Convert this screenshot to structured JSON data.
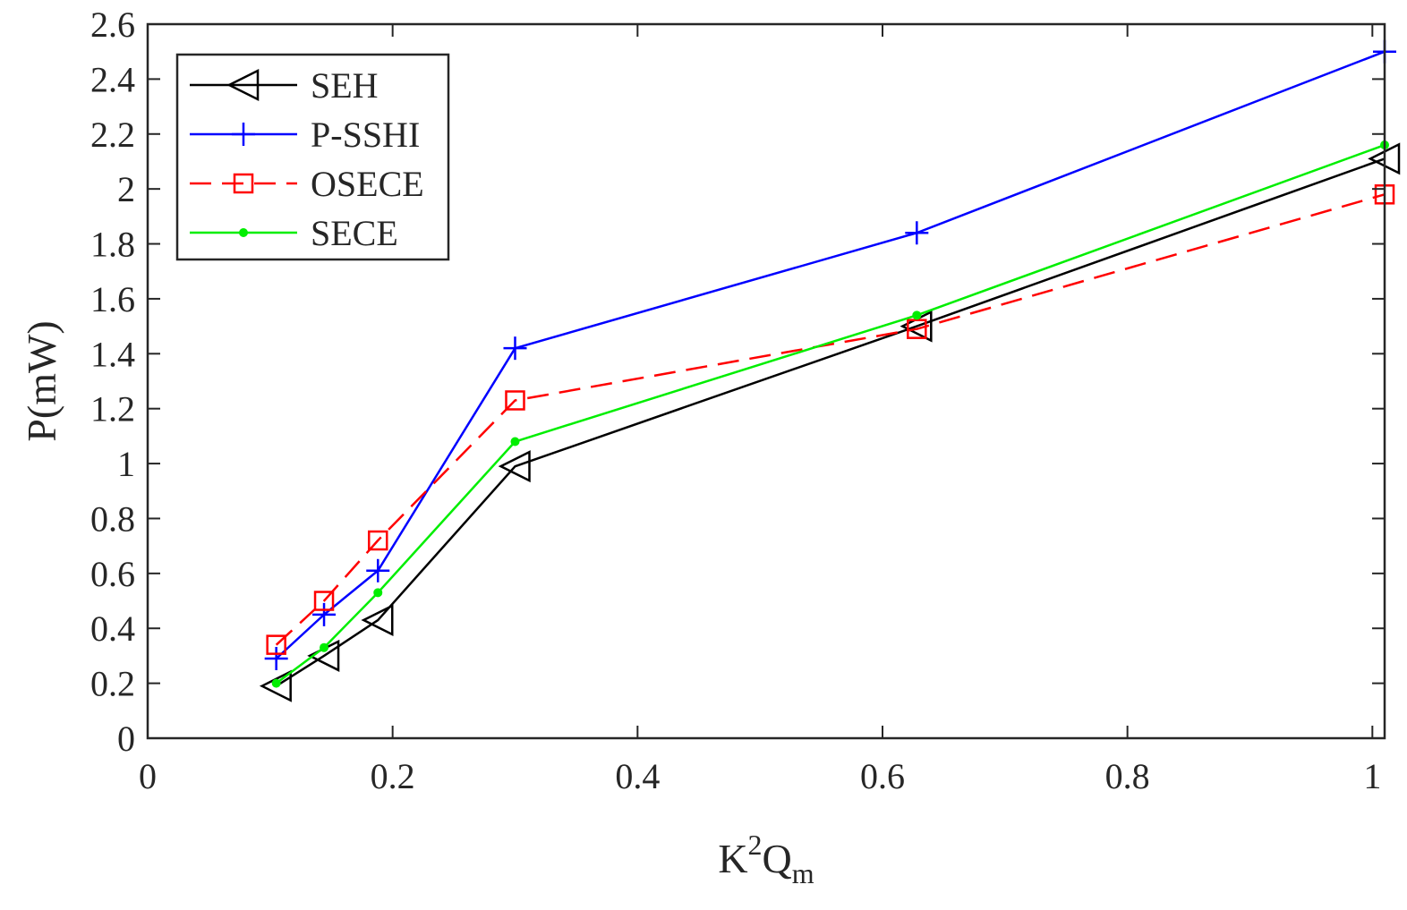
{
  "chart_data": {
    "type": "line",
    "title": "",
    "xlabel": {
      "base": "K",
      "sup": "2",
      "main": "Q",
      "sub": "m"
    },
    "ylabel": "P(mW)",
    "xlim": [
      0,
      1.01
    ],
    "ylim": [
      0,
      2.6
    ],
    "xticks": [
      0,
      0.2,
      0.4,
      0.6,
      0.8,
      1
    ],
    "xtick_labels": [
      "0",
      "0.2",
      "0.4",
      "0.6",
      "0.8",
      "1"
    ],
    "yticks": [
      0,
      0.2,
      0.4,
      0.6,
      0.8,
      1,
      1.2,
      1.4,
      1.6,
      1.8,
      2,
      2.2,
      2.4,
      2.6
    ],
    "ytick_labels": [
      "0",
      "0.2",
      "0.4",
      "0.6",
      "0.8",
      "1",
      "1.2",
      "1.4",
      "1.6",
      "1.8",
      "2",
      "2.2",
      "2.4",
      "2.6"
    ],
    "grid": false,
    "legend_position": "top-left",
    "x": [
      0.105,
      0.144,
      0.188,
      0.3,
      0.628,
      1.01
    ],
    "series": [
      {
        "name": "SEH",
        "values": [
          0.19,
          0.3,
          0.43,
          0.99,
          1.5,
          2.11
        ],
        "color": "#000000",
        "dash": "solid",
        "marker": "triangle-left"
      },
      {
        "name": "P-SSHI",
        "values": [
          0.29,
          0.45,
          0.61,
          1.42,
          1.84,
          2.5
        ],
        "color": "#0000FF",
        "dash": "solid",
        "marker": "plus"
      },
      {
        "name": "OSECE",
        "values": [
          0.34,
          0.5,
          0.72,
          1.23,
          1.49,
          1.98
        ],
        "color": "#FF0000",
        "dash": "dashed",
        "marker": "square"
      },
      {
        "name": "SECE",
        "values": [
          0.2,
          0.33,
          0.53,
          1.08,
          1.54,
          2.16
        ],
        "color": "#00EE00",
        "dash": "solid",
        "marker": "dot"
      }
    ]
  }
}
